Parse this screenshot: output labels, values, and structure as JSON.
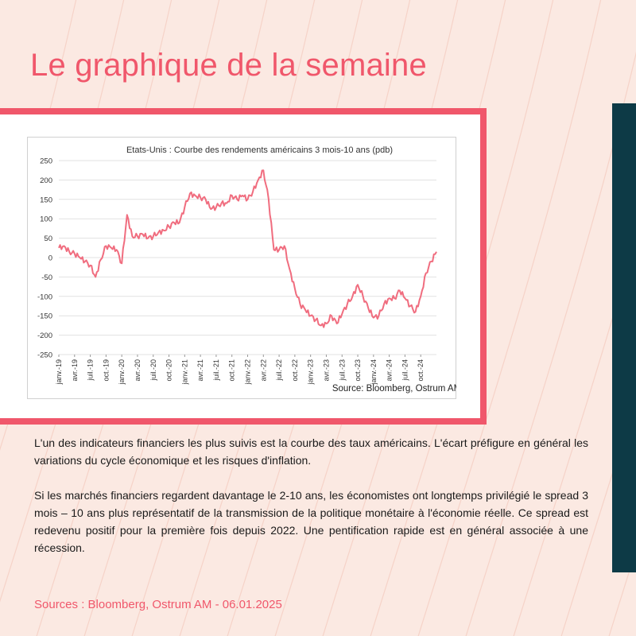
{
  "page_title": "Le graphique de la semaine",
  "body_paragraphs": [
    "L'un des indicateurs financiers les plus suivis est la courbe des taux américains. L'écart préfigure en général les variations du cycle économique et les risques d'inflation.",
    "Si les marchés financiers regardent davantage le 2-10 ans, les économistes ont longtemps privilégié le spread 3 mois – 10 ans plus représentatif de la transmission de la politique monétaire à l'économie réelle. Ce spread est redevenu positif pour la première fois depuis 2022. Une pentification rapide est en général associée à une récession."
  ],
  "sources_footer": "Sources : Bloomberg, Ostrum AM - 06.01.2025",
  "colors": {
    "accent": "#f0576b",
    "side_bar": "#0d3a46",
    "background": "#fbe9e2",
    "line": "#f06d7f"
  },
  "chart_data": {
    "type": "line",
    "title": "Etats-Unis : Courbe des rendements  américains 3 mois-10 ans (pdb)",
    "source_note": "Source: Bloomberg, Ostrum AM",
    "xlabel": "",
    "ylabel": "",
    "ylim": [
      -250,
      250
    ],
    "yticks": [
      250,
      200,
      150,
      100,
      50,
      0,
      -50,
      -100,
      -150,
      -200,
      -250
    ],
    "grid": true,
    "legend": "none",
    "x_tick_labels": [
      "janv.-19",
      "avr.-19",
      "juil.-19",
      "oct.-19",
      "janv.-20",
      "avr.-20",
      "juil.-20",
      "oct.-20",
      "janv.-21",
      "avr.-21",
      "juil.-21",
      "oct.-21",
      "janv.-22",
      "avr.-22",
      "juil.-22",
      "oct.-22",
      "janv.-23",
      "avr.-23",
      "juil.-23",
      "oct.-23",
      "janv.-24",
      "avr.-24",
      "juil.-24",
      "oct.-24"
    ],
    "series": [
      {
        "x": [
          "2019-01",
          "2019-02",
          "2019-03",
          "2019-04",
          "2019-05",
          "2019-06",
          "2019-07",
          "2019-08",
          "2019-09",
          "2019-10",
          "2019-11",
          "2019-12",
          "2020-01",
          "2020-02",
          "2020-03",
          "2020-04",
          "2020-05",
          "2020-06",
          "2020-07",
          "2020-08",
          "2020-09",
          "2020-10",
          "2020-11",
          "2020-12",
          "2021-01",
          "2021-02",
          "2021-03",
          "2021-04",
          "2021-05",
          "2021-06",
          "2021-07",
          "2021-08",
          "2021-09",
          "2021-10",
          "2021-11",
          "2021-12",
          "2022-01",
          "2022-02",
          "2022-03",
          "2022-04",
          "2022-05",
          "2022-06",
          "2022-07",
          "2022-08",
          "2022-09",
          "2022-10",
          "2022-11",
          "2022-12",
          "2023-01",
          "2023-02",
          "2023-03",
          "2023-04",
          "2023-05",
          "2023-06",
          "2023-07",
          "2023-08",
          "2023-09",
          "2023-10",
          "2023-11",
          "2023-12",
          "2024-01",
          "2024-02",
          "2024-03",
          "2024-04",
          "2024-05",
          "2024-06",
          "2024-07",
          "2024-08",
          "2024-09",
          "2024-10",
          "2024-11",
          "2024-12",
          "2025-01"
        ],
        "values": [
          25,
          30,
          15,
          10,
          0,
          -10,
          -20,
          -50,
          -5,
          30,
          25,
          20,
          -15,
          110,
          55,
          55,
          60,
          50,
          55,
          65,
          70,
          80,
          90,
          90,
          130,
          165,
          160,
          155,
          150,
          125,
          130,
          140,
          140,
          160,
          150,
          160,
          150,
          170,
          200,
          225,
          150,
          20,
          20,
          30,
          -30,
          -80,
          -120,
          -135,
          -150,
          -160,
          -175,
          -170,
          -150,
          -170,
          -145,
          -120,
          -100,
          -70,
          -100,
          -130,
          -155,
          -150,
          -120,
          -105,
          -105,
          -85,
          -105,
          -125,
          -140,
          -100,
          -40,
          -10,
          15
        ]
      }
    ]
  }
}
